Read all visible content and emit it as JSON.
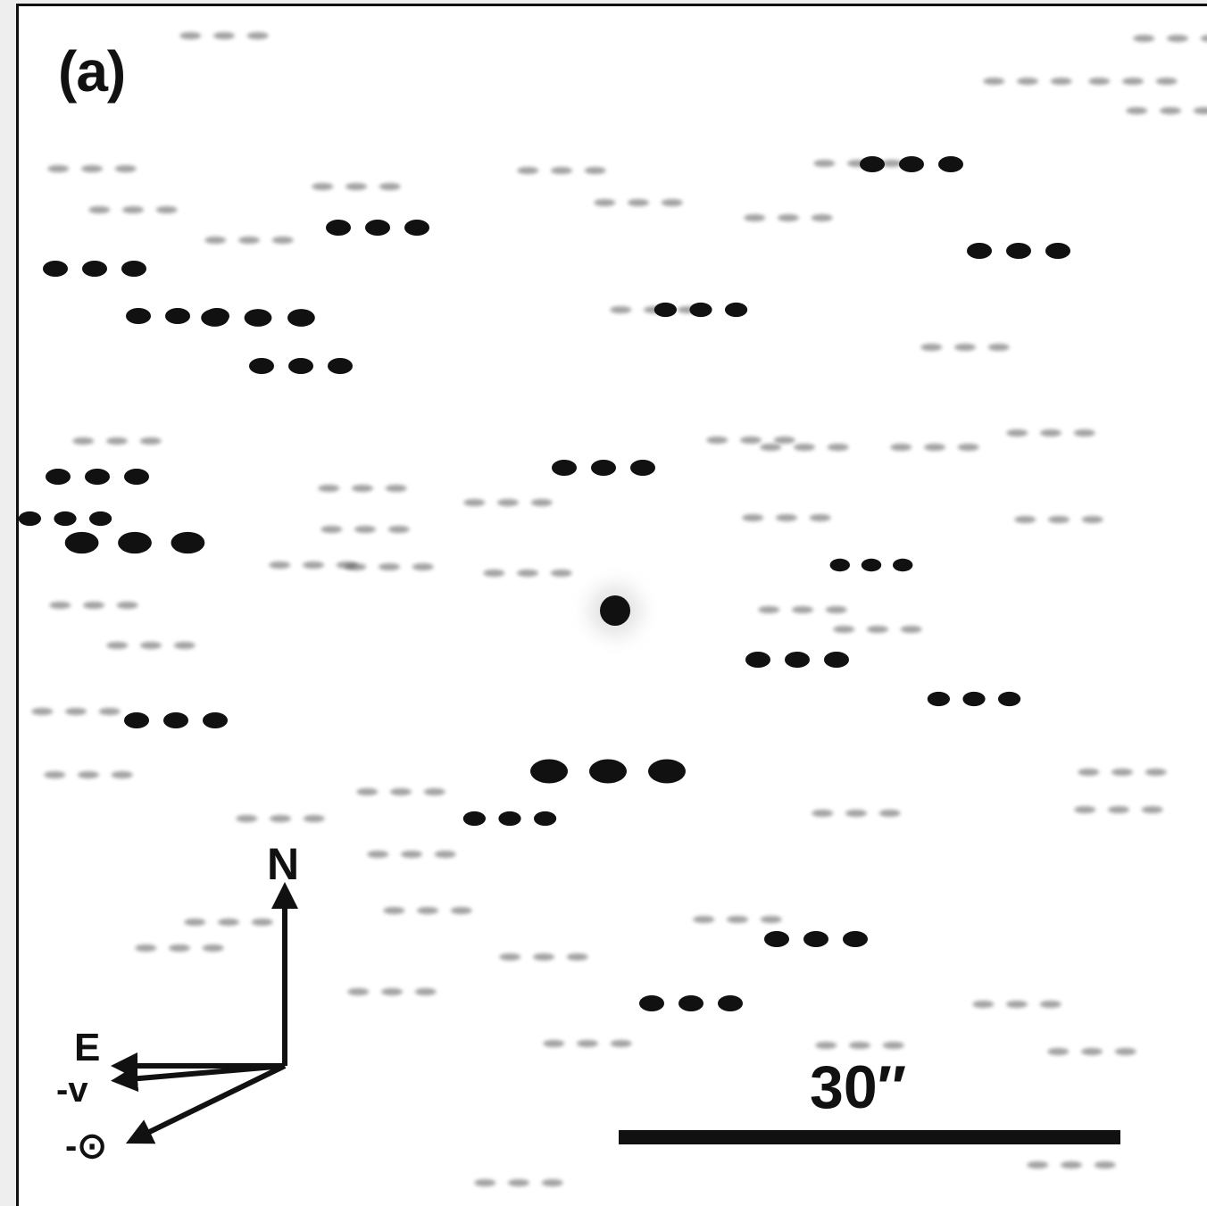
{
  "panel": {
    "label": "(a)"
  },
  "compass": {
    "north_label": "N",
    "east_label": "E",
    "velocity_label": "-v",
    "sun_label": "-⊙"
  },
  "scale": {
    "label": "30″"
  },
  "image": {
    "background": "#ffffff",
    "ink": "#111111"
  }
}
